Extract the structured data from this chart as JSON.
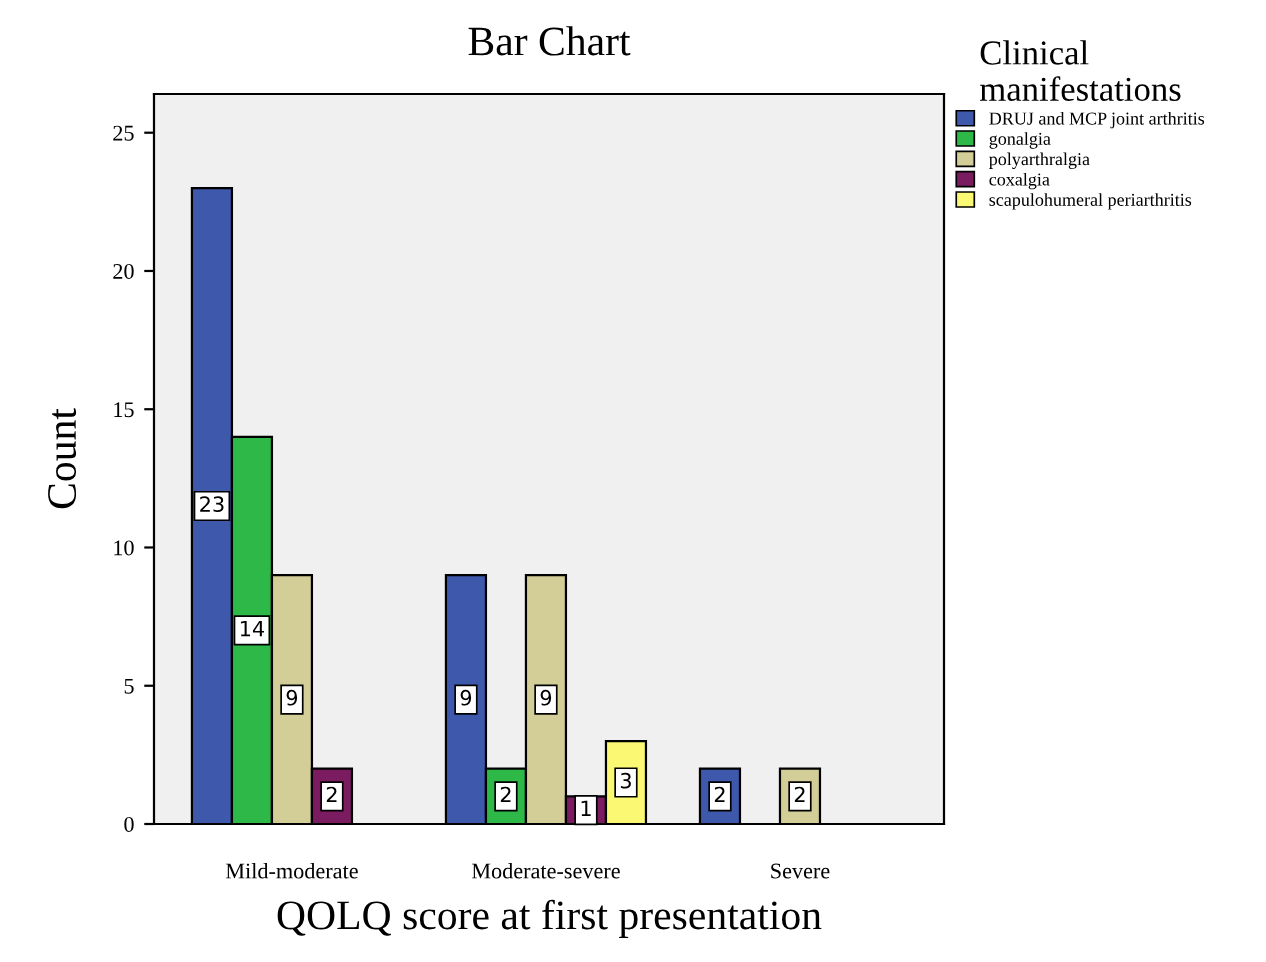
{
  "chart_data": {
    "type": "bar",
    "title": "Bar Chart",
    "xlabel": "QOLQ score at first presentation",
    "ylabel": "Count",
    "legend_title": "Clinical manifestations",
    "categories": [
      "Mild-moderate",
      "Moderate-severe",
      "Severe"
    ],
    "series": [
      {
        "name": "DRUJ and MCP joint arthritis",
        "color": "#3e58ac",
        "values": [
          23,
          9,
          2
        ]
      },
      {
        "name": "gonalgia",
        "color": "#2eb848",
        "values": [
          14,
          2,
          null
        ]
      },
      {
        "name": "polyarthralgia",
        "color": "#d3ce97",
        "values": [
          9,
          9,
          2
        ]
      },
      {
        "name": "coxalgia",
        "color": "#7c1c60",
        "values": [
          2,
          1,
          null
        ]
      },
      {
        "name": "scapulohumeral periarthritis",
        "color": "#fbf873",
        "values": [
          null,
          3,
          null
        ]
      }
    ],
    "ylim": [
      0,
      26.4
    ],
    "yticks": [
      0,
      5,
      10,
      15,
      20,
      25
    ],
    "grid": false,
    "legend": "top right",
    "data_labels": true
  }
}
